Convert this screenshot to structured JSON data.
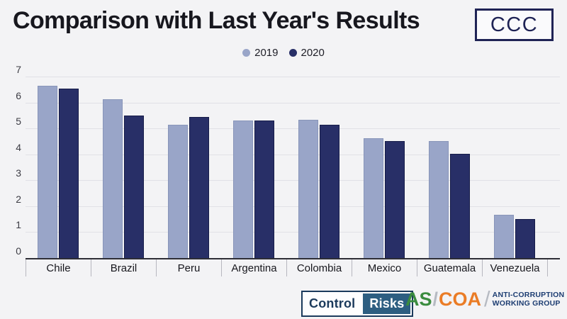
{
  "title": "Comparison with Last Year's Results",
  "badge": {
    "text": "CCC"
  },
  "chart_data": {
    "type": "bar",
    "title": "Comparison with Last Year's Results",
    "categories": [
      "Chile",
      "Brazil",
      "Peru",
      "Argentina",
      "Colombia",
      "Mexico",
      "Guatemala",
      "Venezuela"
    ],
    "series": [
      {
        "name": "2019",
        "color": "#99a5c8",
        "values": [
          6.66,
          6.14,
          5.17,
          5.34,
          5.36,
          4.65,
          4.55,
          1.7
        ]
      },
      {
        "name": "2020",
        "color": "#282f67",
        "values": [
          6.57,
          5.52,
          5.47,
          5.32,
          5.18,
          4.55,
          4.04,
          1.52
        ]
      }
    ],
    "xlabel": "",
    "ylabel": "",
    "ylim": [
      0,
      7
    ],
    "yticks": [
      0,
      1,
      2,
      3,
      4,
      5,
      6,
      7
    ],
    "grid": true,
    "legend_position": "top"
  },
  "footer": {
    "control_risks": {
      "part1": "Control",
      "part2": "Risks"
    },
    "ascoa": {
      "as_text": "AS",
      "slash": "/",
      "coa_text": "COA",
      "line1": "ANTI-CORRUPTION",
      "line2": "WORKING GROUP"
    }
  },
  "colors": {
    "background": "#f3f3f5",
    "series_2019": "#99a5c8",
    "series_2020": "#282f67",
    "gridline": "#e1e1e6",
    "axis": "#2e2e36",
    "ccc_navy": "#1f2355",
    "control_risks_navy": "#1b3a5c",
    "control_risks_blue": "#2d5e81",
    "ascoa_green": "#3b8c3f",
    "ascoa_orange": "#ea7c26",
    "acwg_navy": "#1d3d72"
  }
}
